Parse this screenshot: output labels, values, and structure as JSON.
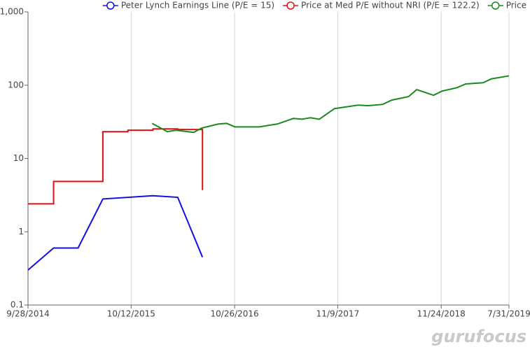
{
  "chart_data": {
    "type": "line",
    "log_y": true,
    "grid": "x",
    "legend": "top-right",
    "xlim": [
      "2014-09-28",
      "2019-07-31"
    ],
    "xticks": [
      {
        "value": "2014-09-28",
        "label": "9/28/2014"
      },
      {
        "value": "2015-10-12",
        "label": "10/12/2015"
      },
      {
        "value": "2016-10-26",
        "label": "10/26/2016"
      },
      {
        "value": "2017-11-09",
        "label": "11/9/2017"
      },
      {
        "value": "2018-11-24",
        "label": "11/24/2018"
      },
      {
        "value": "2019-07-31",
        "label": "7/31/2019"
      }
    ],
    "ylim": [
      0.1,
      1000
    ],
    "yticks": [
      0.1,
      1,
      10,
      100,
      {
        "value": 1000,
        "label": "1,000"
      }
    ],
    "series": [
      {
        "name": "Peter Lynch Earnings Line (P/E = 15)",
        "color": "#1010e0",
        "step": false,
        "x": [
          "2014-09-28",
          "2014-12-31",
          "2015-03-31",
          "2015-06-30",
          "2015-12-31",
          "2016-03-31",
          "2016-06-30"
        ],
        "values": [
          0.3,
          0.6,
          0.6,
          2.8,
          3.1,
          2.95,
          0.45
        ]
      },
      {
        "name": "Price at Med P/E without NRI (P/E = 122.2)",
        "color": "#e01010",
        "step": true,
        "x": [
          "2014-09-28",
          "2014-12-31",
          "2015-03-31",
          "2015-06-30",
          "2015-09-30",
          "2015-12-31",
          "2016-03-31",
          "2016-06-30"
        ],
        "values": [
          2.4,
          4.85,
          4.85,
          23.2,
          24.3,
          25.3,
          24.8,
          3.7
        ]
      },
      {
        "name": "Price",
        "color": "#1a8a1a",
        "step": false,
        "x": [
          "2015-12-28",
          "2016-02-22",
          "2016-03-24",
          "2016-05-29",
          "2016-06-26",
          "2016-08-27",
          "2016-09-27",
          "2016-10-27",
          "2017-01-25",
          "2017-04-01",
          "2017-05-30",
          "2017-06-30",
          "2017-07-31",
          "2017-09-02",
          "2017-10-28",
          "2018-01-23",
          "2018-02-28",
          "2018-04-23",
          "2018-05-26",
          "2018-07-27",
          "2018-08-26",
          "2018-10-27",
          "2018-11-27",
          "2019-01-22",
          "2019-02-22",
          "2019-04-27",
          "2019-05-27",
          "2019-07-31"
        ],
        "values": [
          30.1,
          23.2,
          24.3,
          22.7,
          25.9,
          29.5,
          30.1,
          27.0,
          27.0,
          29.5,
          35.2,
          34.3,
          36.0,
          34.3,
          47.9,
          53.5,
          52.4,
          54.7,
          62.5,
          69.8,
          87.0,
          72.8,
          83.0,
          92.7,
          104,
          108,
          122,
          134
        ]
      }
    ],
    "watermark": "gurufocus"
  }
}
